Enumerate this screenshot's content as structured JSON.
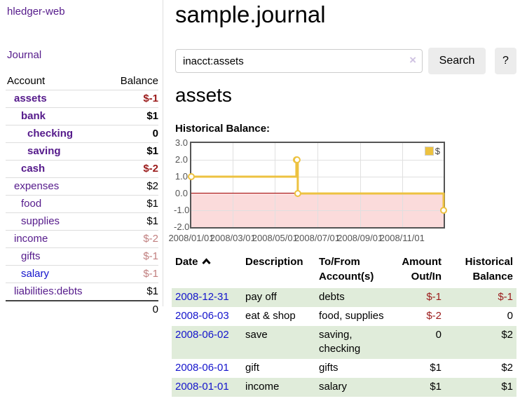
{
  "colors": {
    "link_purple": "#551a8b",
    "link_blue": "#1414cc",
    "negative_strong": "#9b1b1b",
    "negative_soft": "#c17f7f",
    "row_stripe_green": "#e0ecda",
    "series_yellow": "#edc240",
    "negative_region_pink": "#fbdbdb",
    "zero_line_red": "#a00000",
    "button_gray": "#ececec"
  },
  "sidebar": {
    "brand": "hledger-web",
    "journal_label": "Journal",
    "table": {
      "headers": {
        "account": "Account",
        "balance": "Balance"
      },
      "rows": [
        {
          "label": "assets",
          "balance": "$-1"
        },
        {
          "label": "bank",
          "balance": "$1"
        },
        {
          "label": "checking",
          "balance": "0"
        },
        {
          "label": "saving",
          "balance": "$1"
        },
        {
          "label": "cash",
          "balance": "$-2"
        },
        {
          "label": "expenses",
          "balance": "$2"
        },
        {
          "label": "food",
          "balance": "$1"
        },
        {
          "label": "supplies",
          "balance": "$1"
        },
        {
          "label": "income",
          "balance": "$-2"
        },
        {
          "label": "gifts",
          "balance": "$-1"
        },
        {
          "label": "salary",
          "balance": "$-1"
        },
        {
          "label": "liabilities:debts",
          "balance": "$1"
        }
      ],
      "total": "0"
    }
  },
  "main": {
    "title": "sample.journal",
    "search": {
      "value": "inacct:assets",
      "clear_icon": "×",
      "button_label": "Search",
      "help_label": "?"
    },
    "account_heading": "assets",
    "chart_label": "Historical Balance:"
  },
  "chart_data": {
    "type": "line",
    "step": true,
    "title": "Historical Balance",
    "series": [
      {
        "name": "$",
        "color": "#edc240",
        "points": [
          [
            "2008-01-01",
            1.0
          ],
          [
            "2008-06-01",
            2.0
          ],
          [
            "2008-06-02",
            2.0
          ],
          [
            "2008-06-03",
            0.0
          ],
          [
            "2008-12-31",
            -1.0
          ]
        ]
      }
    ],
    "x_range": [
      "2008-01-01",
      "2008-12-31"
    ],
    "x_ticks": [
      "2008/01/01",
      "2008/03/01",
      "2008/05/01",
      "2008/07/01",
      "2008/09/01",
      "2008/11/01"
    ],
    "y_ticks": [
      3.0,
      2.0,
      1.0,
      0.0,
      -1.0,
      -2.0
    ],
    "ylim": [
      -2,
      3
    ],
    "grid": true,
    "legend_position": "top-right"
  },
  "register": {
    "headers": {
      "date": "Date",
      "description": "Description",
      "accounts": "To/From Account(s)",
      "amount": "Amount Out/In",
      "balance": "Historical Balance"
    },
    "rows": [
      {
        "date": "2008-12-31",
        "description": "pay off",
        "accounts": "debts",
        "amount": "$-1",
        "balance": "$-1"
      },
      {
        "date": "2008-06-03",
        "description": "eat & shop",
        "accounts": "food, supplies",
        "amount": "$-2",
        "balance": "0"
      },
      {
        "date": "2008-06-02",
        "description": "save",
        "accounts": "saving, checking",
        "amount": "0",
        "balance": "$2"
      },
      {
        "date": "2008-06-01",
        "description": "gift",
        "accounts": "gifts",
        "amount": "$1",
        "balance": "$2"
      },
      {
        "date": "2008-01-01",
        "description": "income",
        "accounts": "salary",
        "amount": "$1",
        "balance": "$1"
      }
    ]
  }
}
